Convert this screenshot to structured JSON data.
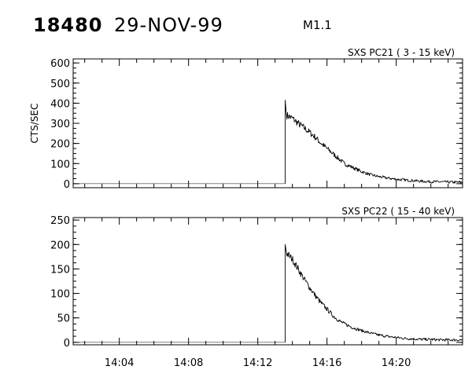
{
  "header": {
    "event_id": "18480",
    "date": "29-NOV-99",
    "flare_class": "M1.1"
  },
  "chart_data": [
    {
      "type": "line",
      "title": "SXS PC21  ( 3 - 15 keV)",
      "ylabel": "CTS/SEC",
      "xlabel": "",
      "xlim": [
        "14:01:20",
        "14:23:50"
      ],
      "ylim": [
        -20,
        620
      ],
      "yticks": [
        0,
        100,
        200,
        300,
        400,
        500,
        600
      ],
      "xticks": [
        "14:04",
        "14:08",
        "14:12",
        "14:16",
        "14:20"
      ],
      "grid": false,
      "onset_time": "14:13:35",
      "spike_peak": 415,
      "series": [
        {
          "x": [
            "14:13:35",
            "14:13:40",
            "14:14:00",
            "14:14:20",
            "14:14:40",
            "14:15:00",
            "14:15:20",
            "14:15:40",
            "14:16:00",
            "14:16:20",
            "14:16:40",
            "14:17:00",
            "14:17:30",
            "14:18:00",
            "14:18:30",
            "14:19:00",
            "14:19:30",
            "14:20:00",
            "14:20:30",
            "14:21:00",
            "14:21:30",
            "14:22:00",
            "14:22:30",
            "14:23:00",
            "14:23:30",
            "14:23:50"
          ],
          "values": [
            340,
            340,
            325,
            300,
            278,
            255,
            230,
            200,
            175,
            150,
            125,
            100,
            80,
            60,
            45,
            35,
            28,
            22,
            18,
            15,
            12,
            10,
            9,
            8,
            7,
            7
          ]
        }
      ]
    },
    {
      "type": "line",
      "title": "SXS PC22  ( 15 - 40 keV)",
      "ylabel": "",
      "xlabel": "",
      "xlim": [
        "14:01:20",
        "14:23:50"
      ],
      "ylim": [
        -5,
        255
      ],
      "yticks": [
        0,
        50,
        100,
        150,
        200,
        250
      ],
      "xticks": [
        "14:04",
        "14:08",
        "14:12",
        "14:16",
        "14:20"
      ],
      "grid": false,
      "onset_time": "14:13:35",
      "spike_peak": 200,
      "series": [
        {
          "x": [
            "14:13:35",
            "14:13:40",
            "14:14:00",
            "14:14:20",
            "14:14:40",
            "14:15:00",
            "14:15:20",
            "14:15:40",
            "14:16:00",
            "14:16:20",
            "14:16:40",
            "14:17:00",
            "14:17:30",
            "14:18:00",
            "14:18:30",
            "14:19:00",
            "14:19:30",
            "14:20:00",
            "14:20:30",
            "14:21:00",
            "14:21:30",
            "14:22:00",
            "14:22:30",
            "14:23:00",
            "14:23:30",
            "14:23:50"
          ],
          "values": [
            180,
            182,
            170,
            150,
            130,
            112,
            95,
            80,
            68,
            55,
            45,
            38,
            30,
            24,
            19,
            15,
            12,
            10,
            8,
            7,
            6,
            6,
            5,
            5,
            5,
            5
          ]
        }
      ]
    }
  ]
}
